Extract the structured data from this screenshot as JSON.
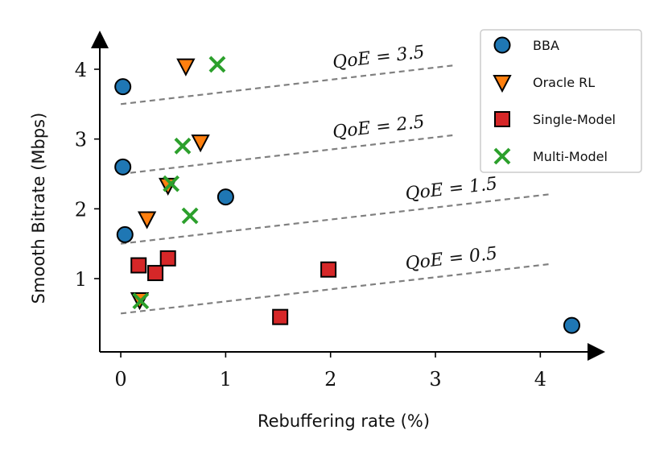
{
  "chart_data": {
    "type": "scatter",
    "xlabel": "Rebuffering rate (%)",
    "ylabel": "Smooth Bitrate (Mbps)",
    "xlim": [
      -0.2,
      4.45
    ],
    "ylim": [
      -0.05,
      4.3
    ],
    "xticks": [
      0,
      1,
      2,
      3,
      4
    ],
    "yticks": [
      1,
      2,
      3,
      4
    ],
    "grid": false,
    "legend_position": "top-right",
    "series": [
      {
        "name": "BBA",
        "marker": "circle",
        "color": "#1f77b4",
        "points": [
          [
            0.02,
            3.75
          ],
          [
            0.02,
            2.6
          ],
          [
            0.04,
            1.63
          ],
          [
            1.0,
            2.17
          ],
          [
            4.3,
            0.33
          ]
        ]
      },
      {
        "name": "Oracle RL",
        "marker": "triangle-down",
        "color": "#ff7f0e",
        "points": [
          [
            0.62,
            4.05
          ],
          [
            0.76,
            2.96
          ],
          [
            0.45,
            2.34
          ],
          [
            0.25,
            1.86
          ],
          [
            0.18,
            0.7
          ]
        ]
      },
      {
        "name": "Single-Model",
        "marker": "square",
        "color": "#d62728",
        "points": [
          [
            0.17,
            1.19
          ],
          [
            0.33,
            1.08
          ],
          [
            0.45,
            1.29
          ],
          [
            1.52,
            0.45
          ],
          [
            1.98,
            1.13
          ]
        ]
      },
      {
        "name": "Multi-Model",
        "marker": "x",
        "color": "#2ca02c",
        "points": [
          [
            0.92,
            4.07
          ],
          [
            0.59,
            2.9
          ],
          [
            0.48,
            2.36
          ],
          [
            0.66,
            1.9
          ],
          [
            0.19,
            0.68
          ]
        ]
      }
    ],
    "qoe_lines": [
      {
        "label": "QoE = 3.5",
        "x": [
          0,
          3.2
        ],
        "y": [
          3.5,
          4.06
        ]
      },
      {
        "label": "QoE = 2.5",
        "x": [
          0,
          3.2
        ],
        "y": [
          2.5,
          3.06
        ]
      },
      {
        "label": "QoE = 1.5",
        "x": [
          0,
          4.1
        ],
        "y": [
          1.5,
          2.21
        ]
      },
      {
        "label": "QoE = 0.5",
        "x": [
          0,
          4.1
        ],
        "y": [
          0.5,
          1.21
        ]
      }
    ],
    "qoe_line_color": "#808080"
  }
}
